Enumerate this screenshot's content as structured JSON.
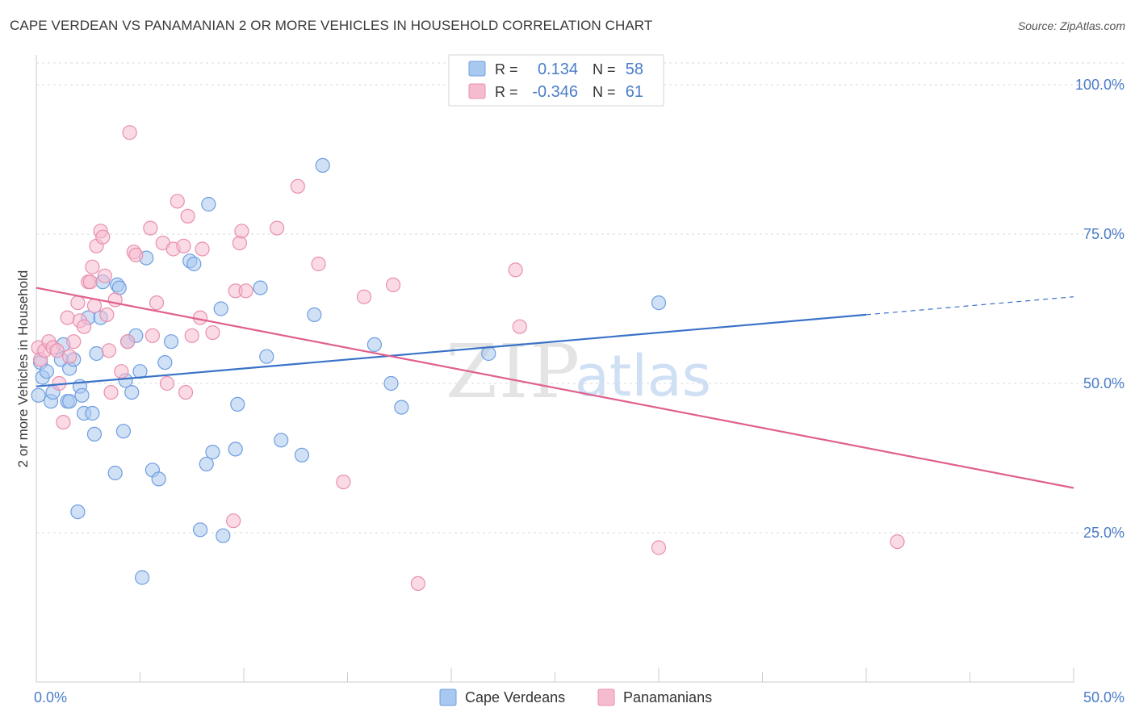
{
  "title": "CAPE VERDEAN VS PANAMANIAN 2 OR MORE VEHICLES IN HOUSEHOLD CORRELATION CHART",
  "source": "Source: ZipAtlas.com",
  "watermark": {
    "zip": "ZIP",
    "atlas": "atlas"
  },
  "colors": {
    "blue_fill": "#a9c8ef",
    "blue_stroke": "#6f9ee0",
    "blue_line": "#3a72c8",
    "pink_fill": "#f5bccf",
    "pink_stroke": "#e98fae",
    "pink_line": "#e0608e",
    "tick": "#4a7cc9"
  },
  "legend": {
    "rows": [
      {
        "r_label": "R =",
        "r_value": "0.134",
        "n_label": "N =",
        "n_value": "58"
      },
      {
        "r_label": "R =",
        "r_value": "-0.346",
        "n_label": "N =",
        "n_value": "61"
      }
    ]
  },
  "chart_data": {
    "type": "scatter",
    "ylabel": "2 or more Vehicles in Household",
    "xlim": [
      0,
      50
    ],
    "ylim": [
      0,
      105
    ],
    "x_tick_labels": [
      "0.0%",
      "50.0%"
    ],
    "y_ticks": [
      25,
      50,
      75,
      100
    ],
    "y_tick_labels": [
      "25.0%",
      "50.0%",
      "75.0%",
      "100.0%"
    ],
    "grid": true,
    "legend_position": "top-center",
    "series": [
      {
        "name": "Cape Verdeans",
        "color": "#a9c8ef",
        "trend": {
          "x0": 0,
          "y0": 49.5,
          "x1": 40,
          "y1": 61.5,
          "x_dash_end": 50,
          "y_dash_end": 64.5
        },
        "points": [
          [
            0.1,
            48
          ],
          [
            0.2,
            53.5
          ],
          [
            0.3,
            51
          ],
          [
            0.5,
            52
          ],
          [
            0.7,
            47
          ],
          [
            0.8,
            48.5
          ],
          [
            1.2,
            54
          ],
          [
            1.3,
            56.5
          ],
          [
            1.5,
            47
          ],
          [
            1.6,
            52.5
          ],
          [
            1.8,
            54
          ],
          [
            2,
            28.5
          ],
          [
            2.1,
            49.5
          ],
          [
            2.2,
            48
          ],
          [
            2.3,
            45
          ],
          [
            2.5,
            61
          ],
          [
            2.7,
            45
          ],
          [
            2.8,
            41.5
          ],
          [
            2.9,
            55
          ],
          [
            3.1,
            61
          ],
          [
            3.2,
            67
          ],
          [
            3.8,
            35
          ],
          [
            3.9,
            66.5
          ],
          [
            4,
            66
          ],
          [
            4.2,
            42
          ],
          [
            4.3,
            50.5
          ],
          [
            4.4,
            57
          ],
          [
            4.6,
            48.5
          ],
          [
            4.8,
            58
          ],
          [
            5,
            52
          ],
          [
            5.1,
            17.5
          ],
          [
            5.3,
            71
          ],
          [
            5.6,
            35.5
          ],
          [
            5.9,
            34
          ],
          [
            6.2,
            53.5
          ],
          [
            6.5,
            57
          ],
          [
            7.4,
            70.5
          ],
          [
            7.6,
            70
          ],
          [
            7.9,
            25.5
          ],
          [
            8.2,
            36.5
          ],
          [
            8.3,
            80
          ],
          [
            8.5,
            38.5
          ],
          [
            8.9,
            62.5
          ],
          [
            9,
            24.5
          ],
          [
            9.6,
            39
          ],
          [
            9.7,
            46.5
          ],
          [
            10.8,
            66
          ],
          [
            11.1,
            54.5
          ],
          [
            11.8,
            40.5
          ],
          [
            12.8,
            38
          ],
          [
            13.4,
            61.5
          ],
          [
            13.8,
            86.5
          ],
          [
            16.3,
            56.5
          ],
          [
            17.1,
            50
          ],
          [
            17.6,
            46
          ],
          [
            21.8,
            55
          ],
          [
            30,
            63.5
          ],
          [
            1.6,
            47
          ]
        ]
      },
      {
        "name": "Panamanians",
        "color": "#f5bccf",
        "trend": {
          "x0": 0,
          "y0": 66,
          "x1": 50,
          "y1": 32.5
        },
        "points": [
          [
            0.1,
            56
          ],
          [
            0.2,
            54
          ],
          [
            0.4,
            55.5
          ],
          [
            0.6,
            57
          ],
          [
            0.8,
            56
          ],
          [
            1,
            55.5
          ],
          [
            1.1,
            50
          ],
          [
            1.3,
            43.5
          ],
          [
            1.5,
            61
          ],
          [
            1.6,
            54.5
          ],
          [
            1.8,
            57
          ],
          [
            2,
            63.5
          ],
          [
            2.1,
            60.5
          ],
          [
            2.3,
            59.5
          ],
          [
            2.5,
            67
          ],
          [
            2.6,
            67
          ],
          [
            2.7,
            69.5
          ],
          [
            2.8,
            63
          ],
          [
            2.9,
            73
          ],
          [
            3.1,
            75.5
          ],
          [
            3.2,
            74.5
          ],
          [
            3.3,
            68
          ],
          [
            3.4,
            61.5
          ],
          [
            3.5,
            55.5
          ],
          [
            3.6,
            48.5
          ],
          [
            3.8,
            64
          ],
          [
            4.1,
            52
          ],
          [
            4.4,
            57
          ],
          [
            4.5,
            92
          ],
          [
            4.7,
            72
          ],
          [
            4.8,
            71.5
          ],
          [
            5.5,
            76
          ],
          [
            5.6,
            58
          ],
          [
            5.8,
            63.5
          ],
          [
            6.1,
            73.5
          ],
          [
            6.3,
            50
          ],
          [
            6.6,
            72.5
          ],
          [
            6.8,
            80.5
          ],
          [
            7.1,
            73
          ],
          [
            7.2,
            48.5
          ],
          [
            7.3,
            78
          ],
          [
            7.5,
            58
          ],
          [
            7.9,
            61
          ],
          [
            8,
            72.5
          ],
          [
            8.5,
            58.5
          ],
          [
            9.5,
            27
          ],
          [
            9.6,
            65.5
          ],
          [
            9.8,
            73.5
          ],
          [
            9.9,
            75.5
          ],
          [
            10.1,
            65.5
          ],
          [
            11.6,
            76
          ],
          [
            12.6,
            83
          ],
          [
            13.6,
            70
          ],
          [
            14.8,
            33.5
          ],
          [
            15.8,
            64.5
          ],
          [
            17.2,
            66.5
          ],
          [
            18.4,
            16.5
          ],
          [
            23.1,
            69
          ],
          [
            23.3,
            59.5
          ],
          [
            30,
            22.5
          ],
          [
            41.5,
            23.5
          ]
        ]
      }
    ]
  }
}
